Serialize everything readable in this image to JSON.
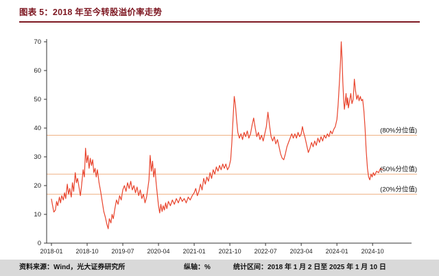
{
  "title": "图表 5：2018 年至今转股溢价率走势",
  "footer": {
    "source": "资料来源：Wind，光大证券研究所",
    "axis_note": "纵轴：%",
    "period": "统计区间：2018 年 1 月 2 日至 2025 年 1 月 10 日"
  },
  "colors": {
    "title": "#7d1721",
    "rule": "#7d1721",
    "line": "#e8432c",
    "reference": "#efb183",
    "axis": "#333333",
    "tick_text": "#222222",
    "footer_bg": "#d9d9d9"
  },
  "chart_data": {
    "type": "line",
    "title": "2018 年至今转股溢价率走势",
    "xlabel": "",
    "ylabel": "%",
    "ylim": [
      0,
      70
    ],
    "y_ticks": [
      0,
      10,
      20,
      30,
      40,
      50,
      60,
      70
    ],
    "x_tick_labels": [
      "2018-01",
      "2018-10",
      "2019-07",
      "2020-04",
      "2021-01",
      "2021-10",
      "2022-07",
      "2023-04",
      "2024-01",
      "2024-10"
    ],
    "x_tick_positions": [
      0,
      9,
      18,
      27,
      36,
      45,
      54,
      63,
      72,
      81
    ],
    "grid": false,
    "legend": "none",
    "reference_lines": [
      {
        "value": 37.5,
        "label": "(80%分位值)"
      },
      {
        "value": 24.0,
        "label": "(50%分位值)"
      },
      {
        "value": 17.0,
        "label": "(20%分位值)"
      }
    ],
    "series": [
      {
        "name": "转股溢价率",
        "points": [
          [
            0,
            15.3
          ],
          [
            0.3,
            13
          ],
          [
            0.6,
            10.8
          ],
          [
            1,
            11.5
          ],
          [
            1.3,
            14.5
          ],
          [
            1.6,
            13
          ],
          [
            2,
            16
          ],
          [
            2.3,
            14
          ],
          [
            2.6,
            16.5
          ],
          [
            3,
            15
          ],
          [
            3.3,
            17.5
          ],
          [
            3.6,
            15.5
          ],
          [
            4,
            20.5
          ],
          [
            4.3,
            17
          ],
          [
            4.6,
            19
          ],
          [
            5,
            16
          ],
          [
            5.3,
            21
          ],
          [
            5.6,
            18
          ],
          [
            6,
            24.5
          ],
          [
            6.3,
            21
          ],
          [
            6.6,
            22.5
          ],
          [
            7,
            19
          ],
          [
            7.3,
            16.5
          ],
          [
            7.6,
            20
          ],
          [
            8,
            25.5
          ],
          [
            8.3,
            23
          ],
          [
            8.6,
            33
          ],
          [
            8.9,
            28
          ],
          [
            9.2,
            30.5
          ],
          [
            9.5,
            26
          ],
          [
            9.8,
            29.5
          ],
          [
            10.1,
            27
          ],
          [
            10.4,
            29
          ],
          [
            10.7,
            24.5
          ],
          [
            11,
            26
          ],
          [
            11.3,
            23
          ],
          [
            11.6,
            25.5
          ],
          [
            12,
            21
          ],
          [
            12.4,
            18
          ],
          [
            12.8,
            14.5
          ],
          [
            13.2,
            11
          ],
          [
            13.6,
            9
          ],
          [
            14,
            6.5
          ],
          [
            14.3,
            5
          ],
          [
            14.6,
            8.5
          ],
          [
            15,
            7
          ],
          [
            15.3,
            10
          ],
          [
            15.6,
            8.5
          ],
          [
            16,
            12
          ],
          [
            16.4,
            15
          ],
          [
            16.8,
            13.5
          ],
          [
            17.2,
            16.5
          ],
          [
            17.6,
            15
          ],
          [
            18,
            18.5
          ],
          [
            18.4,
            20
          ],
          [
            18.8,
            18
          ],
          [
            19.2,
            21
          ],
          [
            19.6,
            19
          ],
          [
            20,
            21.5
          ],
          [
            20.4,
            18.5
          ],
          [
            20.8,
            20
          ],
          [
            21.2,
            17.5
          ],
          [
            21.6,
            19.5
          ],
          [
            22,
            16.5
          ],
          [
            22.4,
            18.5
          ],
          [
            22.8,
            15.5
          ],
          [
            23.2,
            17
          ],
          [
            23.6,
            14
          ],
          [
            24,
            16
          ],
          [
            24.3,
            19
          ],
          [
            24.6,
            22
          ],
          [
            24.9,
            30.5
          ],
          [
            25.2,
            25
          ],
          [
            25.5,
            28.5
          ],
          [
            25.8,
            23
          ],
          [
            26.1,
            26
          ],
          [
            26.4,
            21
          ],
          [
            26.7,
            17
          ],
          [
            27,
            13
          ],
          [
            27.3,
            10.5
          ],
          [
            27.6,
            13.5
          ],
          [
            27.9,
            11
          ],
          [
            28.2,
            13
          ],
          [
            28.5,
            11.5
          ],
          [
            28.8,
            14
          ],
          [
            29.1,
            12
          ],
          [
            29.5,
            14.5
          ],
          [
            30,
            13
          ],
          [
            30.5,
            15
          ],
          [
            31,
            13.5
          ],
          [
            31.5,
            15.5
          ],
          [
            32,
            14
          ],
          [
            32.5,
            16
          ],
          [
            33,
            14.5
          ],
          [
            33.5,
            15.5
          ],
          [
            34,
            14
          ],
          [
            34.5,
            16
          ],
          [
            35,
            15
          ],
          [
            35.5,
            16.5
          ],
          [
            36,
            17.5
          ],
          [
            36.4,
            19
          ],
          [
            36.8,
            16.5
          ],
          [
            37.2,
            18
          ],
          [
            37.6,
            20.5
          ],
          [
            38,
            18.5
          ],
          [
            38.4,
            22.5
          ],
          [
            38.8,
            20.5
          ],
          [
            39.2,
            23
          ],
          [
            39.6,
            21.5
          ],
          [
            40,
            24.5
          ],
          [
            40.4,
            22.5
          ],
          [
            40.8,
            25.5
          ],
          [
            41.2,
            24
          ],
          [
            41.6,
            26.5
          ],
          [
            42,
            25
          ],
          [
            42.4,
            27
          ],
          [
            42.8,
            25.5
          ],
          [
            43.2,
            27.5
          ],
          [
            43.6,
            26
          ],
          [
            44,
            27.5
          ],
          [
            44.4,
            25.5
          ],
          [
            44.8,
            26.5
          ],
          [
            45.2,
            29
          ],
          [
            45.5,
            35
          ],
          [
            45.8,
            43
          ],
          [
            46.1,
            51
          ],
          [
            46.4,
            48
          ],
          [
            46.7,
            43
          ],
          [
            47,
            38.5
          ],
          [
            47.4,
            36.5
          ],
          [
            47.8,
            38
          ],
          [
            48.2,
            36
          ],
          [
            48.6,
            38.5
          ],
          [
            49,
            37
          ],
          [
            49.4,
            39
          ],
          [
            49.8,
            36.5
          ],
          [
            50.2,
            38
          ],
          [
            50.6,
            41
          ],
          [
            51,
            43.5
          ],
          [
            51.4,
            40
          ],
          [
            51.8,
            37
          ],
          [
            52.2,
            38.5
          ],
          [
            52.6,
            36
          ],
          [
            53,
            37.5
          ],
          [
            53.4,
            35.5
          ],
          [
            53.8,
            38
          ],
          [
            54.2,
            40.5
          ],
          [
            54.6,
            45.5
          ],
          [
            55,
            41
          ],
          [
            55.4,
            37
          ],
          [
            55.8,
            35.5
          ],
          [
            56.2,
            37
          ],
          [
            56.6,
            34.5
          ],
          [
            57,
            36
          ],
          [
            57.4,
            33.5
          ],
          [
            57.8,
            31
          ],
          [
            58.2,
            29.5
          ],
          [
            58.6,
            29
          ],
          [
            59,
            31
          ],
          [
            59.4,
            33.5
          ],
          [
            59.8,
            35
          ],
          [
            60.2,
            36.5
          ],
          [
            60.6,
            38
          ],
          [
            61,
            36.5
          ],
          [
            61.4,
            38
          ],
          [
            61.8,
            36.5
          ],
          [
            62.2,
            38.5
          ],
          [
            62.6,
            37
          ],
          [
            63,
            38
          ],
          [
            63.3,
            40.5
          ],
          [
            63.6,
            38.5
          ],
          [
            64,
            36.5
          ],
          [
            64.4,
            34
          ],
          [
            64.8,
            31.5
          ],
          [
            65.2,
            33
          ],
          [
            65.6,
            35
          ],
          [
            66,
            33.5
          ],
          [
            66.4,
            35.5
          ],
          [
            66.8,
            34
          ],
          [
            67.2,
            36.5
          ],
          [
            67.6,
            35
          ],
          [
            68,
            37
          ],
          [
            68.4,
            35.5
          ],
          [
            68.8,
            37.5
          ],
          [
            69.2,
            36.5
          ],
          [
            69.6,
            38
          ],
          [
            70,
            37
          ],
          [
            70.4,
            39
          ],
          [
            70.8,
            38
          ],
          [
            71.2,
            39.5
          ],
          [
            71.6,
            40.5
          ],
          [
            72,
            43
          ],
          [
            72.3,
            48
          ],
          [
            72.6,
            55
          ],
          [
            72.9,
            63
          ],
          [
            73.1,
            70
          ],
          [
            73.3,
            64
          ],
          [
            73.5,
            56
          ],
          [
            73.7,
            50
          ],
          [
            73.9,
            46.5
          ],
          [
            74.1,
            49
          ],
          [
            74.3,
            52
          ],
          [
            74.5,
            48
          ],
          [
            74.7,
            50.5
          ],
          [
            74.9,
            47
          ],
          [
            75.2,
            49.5
          ],
          [
            75.5,
            52
          ],
          [
            75.8,
            48.5
          ],
          [
            76.1,
            50
          ],
          [
            76.4,
            57
          ],
          [
            76.7,
            53
          ],
          [
            77,
            50
          ],
          [
            77.3,
            51.5
          ],
          [
            77.6,
            49.5
          ],
          [
            77.9,
            51
          ],
          [
            78.2,
            49.5
          ],
          [
            78.5,
            50
          ],
          [
            78.8,
            46
          ],
          [
            79.1,
            40
          ],
          [
            79.4,
            32
          ],
          [
            79.7,
            26
          ],
          [
            80,
            23
          ],
          [
            80.3,
            22
          ],
          [
            80.6,
            24
          ],
          [
            80.9,
            23
          ],
          [
            81.2,
            24.5
          ],
          [
            81.5,
            23.5
          ],
          [
            82,
            25
          ],
          [
            82.5,
            24.5
          ],
          [
            83,
            26
          ],
          [
            83.5,
            25.5
          ]
        ]
      }
    ]
  }
}
